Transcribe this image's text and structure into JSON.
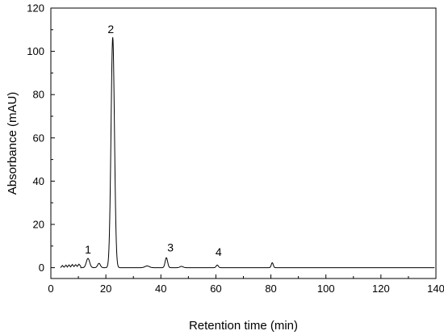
{
  "chart_data": {
    "type": "line",
    "xlabel": "Retention time (min)",
    "ylabel": "Absorbance (mAU)",
    "xlim": [
      0,
      140
    ],
    "ylim": [
      -5,
      120
    ],
    "xticks": [
      0,
      20,
      40,
      60,
      80,
      100,
      120,
      140
    ],
    "yticks": [
      0,
      20,
      40,
      60,
      80,
      100,
      120
    ],
    "grid": false,
    "baseline": 0,
    "series": [
      {
        "baseline_start": 3.5,
        "baseline_end": 139.5,
        "noise_start": [
          [
            3.5,
            0
          ],
          [
            4.2,
            1.0
          ],
          [
            4.8,
            0.2
          ],
          [
            5.5,
            1.2
          ],
          [
            6.0,
            0.3
          ],
          [
            6.6,
            1.3
          ],
          [
            7.2,
            0.4
          ],
          [
            7.8,
            1.5
          ],
          [
            8.4,
            0.5
          ],
          [
            9.0,
            1.4
          ],
          [
            9.6,
            0.6
          ],
          [
            10.2,
            1.6
          ],
          [
            10.8,
            0.8
          ]
        ],
        "peaks": [
          {
            "x": 13.5,
            "height": 4.3,
            "width": 0.6
          },
          {
            "x": 17.5,
            "height": 2.0,
            "width": 0.5
          },
          {
            "x": 22.5,
            "height": 106.5,
            "width": 0.62
          },
          {
            "x": 35.0,
            "height": 0.8,
            "width": 0.8
          },
          {
            "x": 42.0,
            "height": 4.6,
            "width": 0.45
          },
          {
            "x": 47.5,
            "height": 0.6,
            "width": 0.6
          },
          {
            "x": 60.5,
            "height": 1.2,
            "width": 0.4
          },
          {
            "x": 80.5,
            "height": 2.3,
            "width": 0.35
          }
        ]
      }
    ],
    "annotations": [
      {
        "text": "1",
        "x": 13.5,
        "y": 6.5
      },
      {
        "text": "2",
        "x": 21.8,
        "y": 108.5
      },
      {
        "text": "3",
        "x": 43.5,
        "y": 7.5
      },
      {
        "text": "4",
        "x": 61.0,
        "y": 5.5
      }
    ]
  }
}
